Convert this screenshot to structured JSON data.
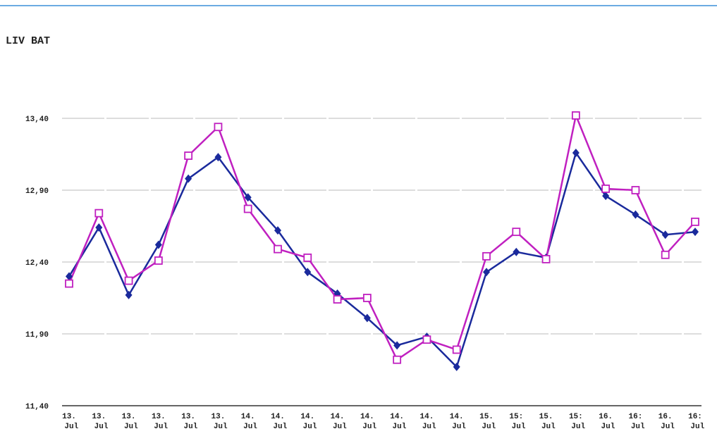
{
  "chart_data": {
    "type": "line",
    "title": "LIV BAT",
    "categories": [
      "13. Jul",
      "13. Jul",
      "13. Jul",
      "13. Jul",
      "13. Jul",
      "13. Jul",
      "14. Jul",
      "14. Jul",
      "14. Jul",
      "14. Jul",
      "14. Jul",
      "14. Jul",
      "14. Jul",
      "14. Jul",
      "15. Jul",
      "15: Jul",
      "15. Jul",
      "15: Jul",
      "16. Jul",
      "16: Jul",
      "16. Jul",
      "16: Jul"
    ],
    "series": [
      {
        "color": "#1a2a9c",
        "values": [
          12.3,
          12.64,
          12.17,
          12.52,
          12.98,
          13.13,
          12.85,
          12.62,
          12.33,
          12.18,
          12.01,
          11.82,
          11.88,
          11.67,
          12.33,
          12.47,
          12.43,
          13.16,
          12.86,
          12.73,
          12.59,
          12.61
        ]
      },
      {
        "color": "#c020c0",
        "values": [
          12.25,
          12.74,
          12.27,
          12.41,
          13.14,
          13.34,
          12.77,
          12.49,
          12.43,
          12.14,
          12.15,
          11.72,
          11.86,
          11.79,
          12.44,
          12.61,
          12.42,
          13.42,
          12.91,
          12.9,
          12.45,
          12.68
        ]
      }
    ],
    "ylim": [
      11.4,
      13.4
    ],
    "yticks": [
      {
        "value": 11.4,
        "label": "11,40"
      },
      {
        "value": 11.9,
        "label": "11,90"
      },
      {
        "value": 12.4,
        "label": "12,40"
      },
      {
        "value": 12.9,
        "label": "12,90"
      },
      {
        "value": 13.4,
        "label": "13,40"
      }
    ],
    "grid": true
  }
}
